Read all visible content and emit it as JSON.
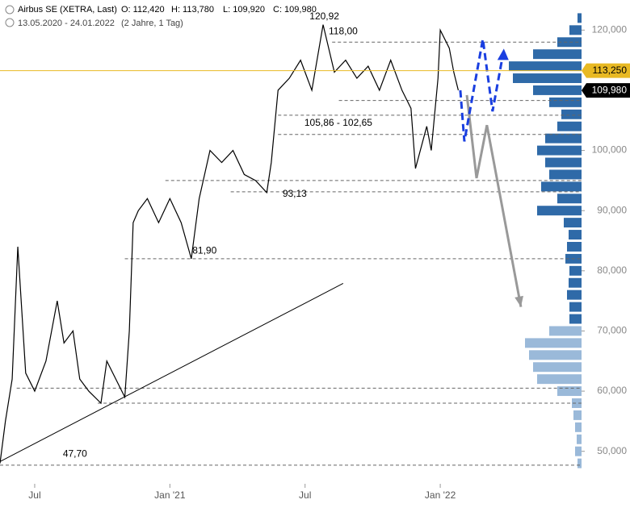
{
  "chart_data": {
    "type": "line",
    "title": "Airbus SE (XETRA, Last)",
    "ohlc": [
      "O: 112,420",
      "H: 113,780",
      "L: 109,920",
      "C: 109,980"
    ],
    "subtitle": "13.05.2020 - 24.01.2022",
    "period": "(2 Jahre, 1 Tag)",
    "xlim": [
      4.46,
      30.27
    ],
    "ylim": [
      44.6,
      125
    ],
    "xticks": [
      {
        "value": 6,
        "label": "Jul"
      },
      {
        "value": 12,
        "label": "Jan '21"
      },
      {
        "value": 18,
        "label": "Jul"
      },
      {
        "value": 24,
        "label": "Jan '22"
      }
    ],
    "yticks": [
      {
        "value": 50,
        "label": "50,000"
      },
      {
        "value": 60,
        "label": "60,000"
      },
      {
        "value": 70,
        "label": "70,000"
      },
      {
        "value": 80,
        "label": "80,000"
      },
      {
        "value": 90,
        "label": "90,000"
      },
      {
        "value": 100,
        "label": "100,000"
      },
      {
        "value": 110,
        "label": "110,000"
      },
      {
        "value": 120,
        "label": "120,000"
      }
    ],
    "series": [
      {
        "name": "Airbus SE",
        "color": "#000000",
        "x": [
          4.46,
          4.7,
          5.0,
          5.25,
          5.6,
          6.0,
          6.5,
          7.0,
          7.3,
          7.7,
          8.0,
          8.4,
          8.94,
          9.2,
          9.6,
          10.0,
          10.2,
          10.37,
          10.6,
          11.0,
          11.5,
          12.0,
          12.5,
          12.95,
          13.3,
          13.78,
          14.3,
          14.8,
          15.3,
          15.8,
          16.3,
          16.5,
          16.8,
          17.3,
          17.8,
          18.3,
          18.8,
          19.3,
          19.8,
          20.3,
          20.8,
          21.3,
          21.8,
          22.3,
          22.7,
          22.9,
          23.4,
          23.6,
          23.9,
          24.0,
          24.4,
          24.6,
          24.8
        ],
        "values": [
          48,
          55,
          62,
          84,
          63,
          60,
          65,
          75,
          68,
          70,
          62,
          60,
          58,
          65,
          62,
          59,
          70,
          88,
          90,
          92,
          88,
          92,
          88,
          82,
          92,
          100,
          98,
          100,
          96,
          95,
          93,
          98,
          110,
          112,
          115,
          110,
          120.9,
          113,
          115,
          112,
          114,
          110,
          115,
          110,
          107,
          97,
          104,
          100,
          112,
          120,
          117,
          113,
          110
        ]
      }
    ],
    "levels": [
      {
        "value": 118,
        "from": 19.2
      },
      {
        "value": 108.3,
        "from": 19.5
      },
      {
        "value": 105.86,
        "from": 16.8
      },
      {
        "value": 102.65,
        "from": 16.8
      },
      {
        "value": 95,
        "from": 11.8
      },
      {
        "value": 93.13,
        "from": 14.7
      },
      {
        "value": 82,
        "from": 10.0
      },
      {
        "value": 60.5,
        "from": 5.2
      },
      {
        "value": 58,
        "from": 8.8
      },
      {
        "value": 47.7,
        "from": 4.46
      }
    ],
    "annotations": [
      {
        "text": "120,92",
        "x": 18.2,
        "y": 122.2
      },
      {
        "text": "118,00",
        "x": 19.05,
        "y": 119.7
      },
      {
        "text": "105,86 - 102,65",
        "x": 17.97,
        "y": 104.5
      },
      {
        "text": "93,13",
        "x": 17.0,
        "y": 92.7
      },
      {
        "text": "81,90",
        "x": 13.0,
        "y": 83.3
      },
      {
        "text": "47,70",
        "x": 7.25,
        "y": 49.5
      }
    ],
    "trendline": {
      "x": [
        4.46,
        19.69
      ],
      "values": [
        48.3,
        77.9
      ],
      "color": "#000000"
    },
    "projection_gray": {
      "x": [
        25.18,
        25.61,
        26.07,
        27.58
      ],
      "values": [
        109.2,
        95.4,
        104.2,
        74.0
      ],
      "color": "#999999"
    },
    "projection_blue": {
      "x": [
        24.89,
        25.07,
        25.89,
        26.32,
        26.75
      ],
      "values": [
        110,
        101.5,
        118.5,
        106.5,
        115.3
      ],
      "color": "#1a3fe0"
    },
    "price_tags": [
      {
        "value": 113.25,
        "label": "113,250",
        "color": "#e8b923"
      },
      {
        "value": 109.98,
        "label": "109,980",
        "color": "#000000"
      }
    ],
    "volume_profile": {
      "prices": [
        48,
        50,
        52,
        54,
        56,
        58,
        60,
        62,
        64,
        66,
        68,
        70,
        72,
        74,
        76,
        78,
        80,
        82,
        84,
        86,
        88,
        90,
        92,
        94,
        96,
        98,
        100,
        102,
        104,
        106,
        108,
        110,
        112,
        114,
        116,
        118,
        120,
        122
      ],
      "values": [
        5,
        8,
        6,
        8,
        10,
        12,
        30,
        55,
        60,
        65,
        70,
        40,
        15,
        15,
        18,
        16,
        15,
        20,
        18,
        16,
        22,
        55,
        30,
        50,
        40,
        45,
        55,
        45,
        30,
        25,
        40,
        60,
        85,
        90,
        60,
        30,
        15,
        5
      ],
      "colors": [
        "#9ab9d9",
        "#2f6aa8"
      ]
    }
  }
}
